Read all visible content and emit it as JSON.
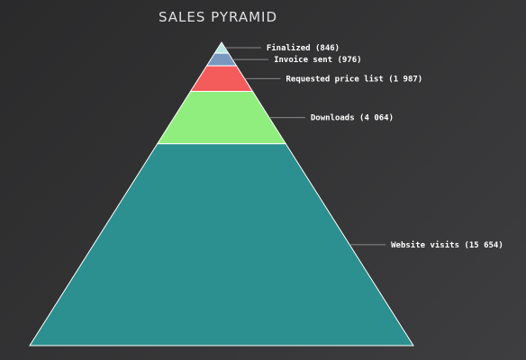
{
  "chart_data": {
    "type": "pyramid",
    "title": "SALES PYRAMID",
    "series": [
      {
        "name": "",
        "points": [
          {
            "label": "Finalized",
            "value": 846,
            "display": "Finalized (846)",
            "color": "#b8e6e2"
          },
          {
            "label": "Invoice sent",
            "value": 976,
            "display": "Invoice sent (976)",
            "color": "#7798bf"
          },
          {
            "label": "Requested price list",
            "value": 1987,
            "display": "Requested price list (1 987)",
            "color": "#f45b5b"
          },
          {
            "label": "Downloads",
            "value": 4064,
            "display": "Downloads (4 064)",
            "color": "#90ee7e"
          },
          {
            "label": "Website visits",
            "value": 15654,
            "display": "Website visits (15 654)",
            "color": "#2b908f"
          }
        ]
      }
    ],
    "legend": false,
    "grid": false
  }
}
